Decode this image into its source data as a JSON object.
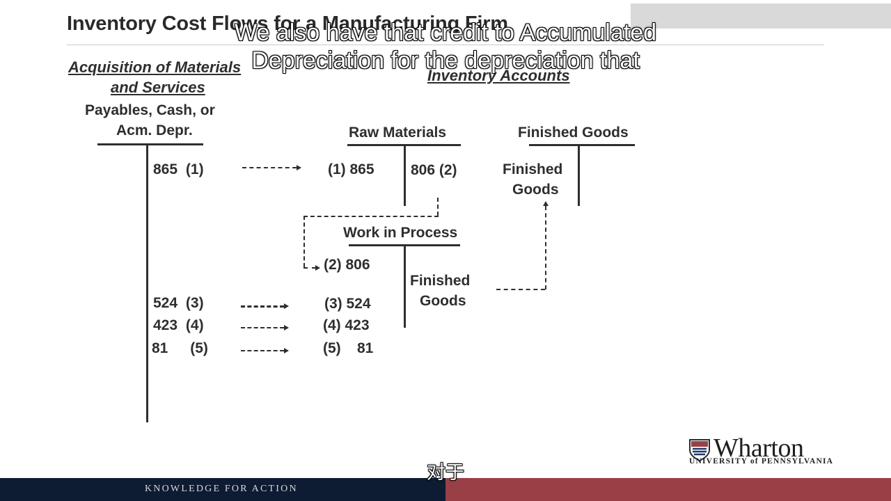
{
  "slide": {
    "title": "Inventory Cost Flows for a Manufacturing Firm",
    "acquisition_heading_line1": "Acquisition of Materials",
    "acquisition_heading_line2": "and Services",
    "inventory_heading": "Inventory Accounts"
  },
  "accounts": {
    "payables": {
      "label_line1": "Payables, Cash, or",
      "label_line2": "Acm. Depr.",
      "entries": [
        {
          "amount": "865",
          "ref": "(1)"
        },
        {
          "amount": "524",
          "ref": "(3)"
        },
        {
          "amount": "423",
          "ref": "(4)"
        },
        {
          "amount": "81",
          "ref": "(5)"
        }
      ]
    },
    "raw_materials": {
      "label": "Raw Materials",
      "debit": "(1)  865",
      "credit": "806 (2)"
    },
    "finished_goods": {
      "label": "Finished Goods",
      "debit_line1": "Finished",
      "debit_line2": "Goods"
    },
    "work_in_process": {
      "label": "Work in Process",
      "debits": [
        "(2)  806",
        "(3)  524",
        "(4)  423",
        "(5)    81"
      ],
      "credit_line1": "Finished",
      "credit_line2": "Goods"
    }
  },
  "captions": {
    "english_line1": "We also have that credit to Accumulated",
    "english_line2": "Depreciation for the depreciation that",
    "chinese": "对于"
  },
  "branding": {
    "logo_word": "Wharton",
    "logo_sub": "UNIVERSITY of PENNSYLVANIA",
    "footer_text": "KNOWLEDGE FOR ACTION",
    "footer_left_color": "#0d1b33",
    "footer_right_color": "#9b3f46"
  }
}
